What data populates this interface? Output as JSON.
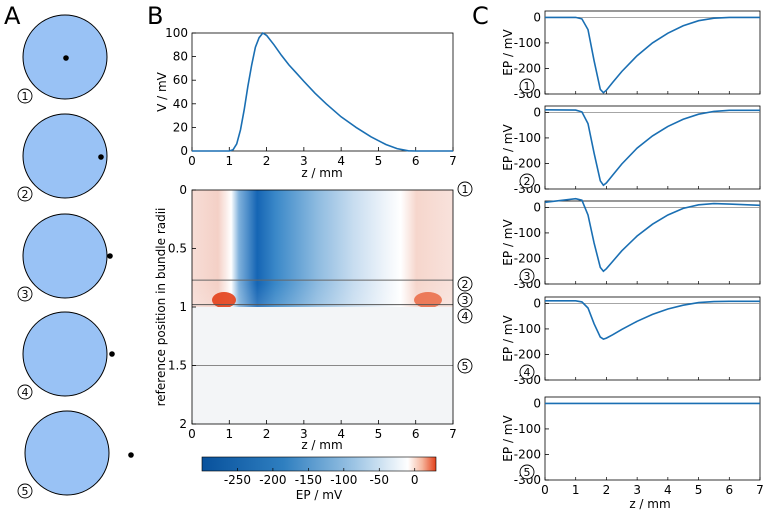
{
  "panel_labels": [
    "A",
    "B",
    "C"
  ],
  "colors": {
    "disc": "#99c2f5",
    "curve": "#1a6fb3",
    "axis": "#000000",
    "zero_line": "#888888"
  },
  "markers": [
    "①",
    "②",
    "③",
    "④",
    "⑤"
  ],
  "chart_data": [
    {
      "type": "diagram",
      "name": "A",
      "description_items": [
        "electrode positions 1-5 relative to bundle cross-section"
      ],
      "electrode_positions_bundle_radii": [
        0,
        0.85,
        0.98,
        1.02,
        1.5
      ]
    },
    {
      "type": "line",
      "name": "B-top",
      "xlabel": "z / mm",
      "ylabel": "V / mV",
      "xlim": [
        0,
        7
      ],
      "ylim": [
        0,
        100
      ],
      "xticks": [
        0,
        1,
        2,
        3,
        4,
        5,
        6,
        7
      ],
      "yticks": [
        0,
        20,
        40,
        60,
        80,
        100
      ],
      "x": [
        0,
        1,
        1.1,
        1.2,
        1.3,
        1.4,
        1.5,
        1.6,
        1.7,
        1.8,
        1.9,
        2.0,
        2.2,
        2.4,
        2.6,
        2.8,
        3.0,
        3.3,
        3.6,
        4.0,
        4.4,
        4.8,
        5.2,
        5.5,
        5.8,
        6.0,
        7.0
      ],
      "values": [
        0,
        0,
        1,
        6,
        18,
        35,
        55,
        73,
        88,
        96,
        100,
        98,
        90,
        81,
        73,
        66,
        59,
        49,
        40,
        29,
        20,
        12,
        5.5,
        2,
        0.2,
        0,
        0
      ]
    },
    {
      "type": "heatmap",
      "name": "B-map",
      "xlabel": "z / mm",
      "ylabel": "reference position in bundle radii",
      "xlim": [
        0,
        7
      ],
      "ylim": [
        0,
        2
      ],
      "xticks": [
        0,
        1,
        2,
        3,
        4,
        5,
        6,
        7
      ],
      "yticks": [
        "0",
        "0.5",
        "1",
        "1.5",
        "2"
      ],
      "colorbar_label": "EP / mV",
      "colorbar_ticks": [
        "-250",
        "-200",
        "-150",
        "-100",
        "-50",
        "0"
      ],
      "colorbar_range": [
        -300,
        30
      ],
      "reference_lines": [
        0.77,
        0.98,
        1.5
      ]
    },
    {
      "type": "line",
      "name": "C",
      "xlabel": "z / mm",
      "ylabel": "EP / mV",
      "xlim": [
        0,
        7
      ],
      "ylim": [
        -300,
        25
      ],
      "xticks": [
        0,
        1,
        2,
        3,
        4,
        5,
        6,
        7
      ],
      "yticks": [
        "0",
        "-100",
        "-200",
        "-300"
      ],
      "x": [
        0,
        1,
        1.2,
        1.4,
        1.6,
        1.8,
        1.9,
        2.0,
        2.2,
        2.5,
        3.0,
        3.5,
        4.0,
        4.5,
        5.0,
        5.5,
        6.0,
        7.0
      ],
      "series": [
        {
          "name": "1",
          "values": [
            0,
            0,
            -6,
            -48,
            -170,
            -282,
            -295,
            -285,
            -255,
            -212,
            -150,
            -100,
            -62,
            -33,
            -13,
            -3,
            0,
            0
          ]
        },
        {
          "name": "2",
          "values": [
            10,
            9,
            2,
            -44,
            -160,
            -268,
            -285,
            -276,
            -246,
            -202,
            -140,
            -92,
            -55,
            -27,
            -7,
            4,
            8,
            8
          ]
        },
        {
          "name": "3",
          "values": [
            20,
            34,
            28,
            -30,
            -140,
            -235,
            -250,
            -240,
            -212,
            -170,
            -112,
            -66,
            -30,
            -4,
            10,
            15,
            13,
            8
          ]
        },
        {
          "name": "4",
          "values": [
            10,
            10,
            6,
            -18,
            -80,
            -132,
            -140,
            -136,
            -123,
            -102,
            -70,
            -43,
            -22,
            -7,
            3,
            7,
            8,
            8
          ]
        },
        {
          "name": "5",
          "values": [
            0,
            0,
            0,
            0,
            0,
            0,
            0,
            0,
            0,
            0,
            0,
            0,
            0,
            0,
            0,
            0,
            0,
            0
          ]
        }
      ]
    }
  ]
}
